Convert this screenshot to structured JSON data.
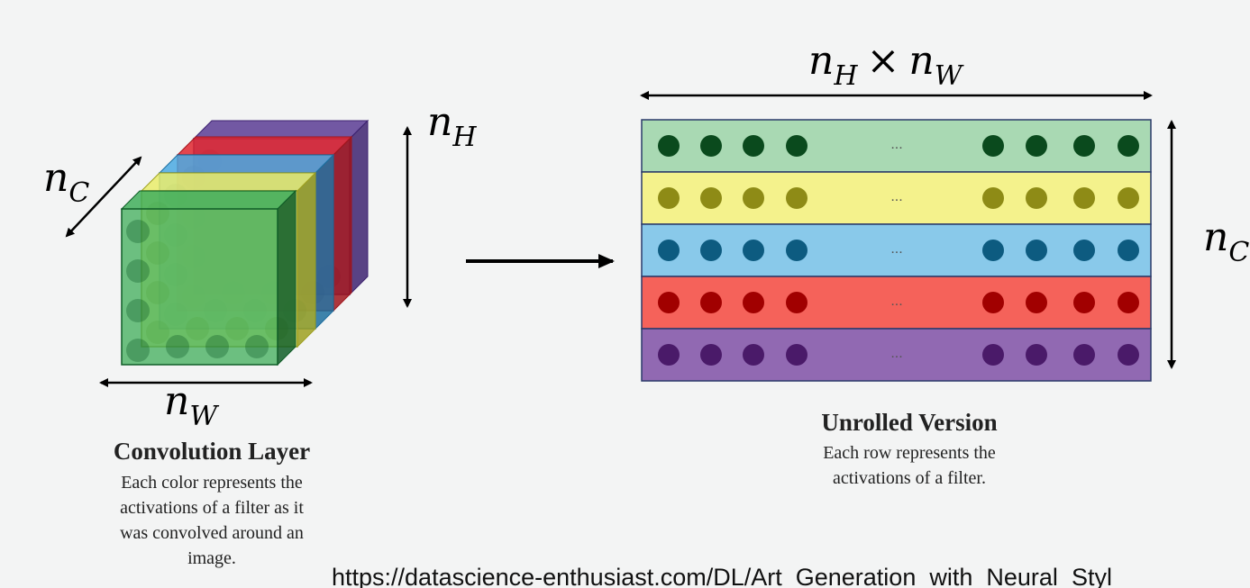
{
  "left": {
    "dim_c": {
      "main": "n",
      "sub": "C"
    },
    "dim_h": {
      "main": "n",
      "sub": "H"
    },
    "dim_w": {
      "main": "n",
      "sub": "W"
    },
    "title": "Convolution Layer",
    "description": [
      "Each color represents the",
      "activations of a filter as it",
      "was convolved around an",
      "image."
    ]
  },
  "right": {
    "dim_top": {
      "main": "n",
      "sub": "H",
      "op": "×",
      "main2": "n",
      "sub2": "W"
    },
    "dim_c": {
      "main": "n",
      "sub": "C"
    },
    "title": "Unrolled Version",
    "description": [
      "Each row represents the",
      "activations of a filter."
    ],
    "ellipsis": "...",
    "rows": [
      {
        "fill": "#a9d9b3",
        "dot": "#0a4a1d"
      },
      {
        "fill": "#f4f28c",
        "dot": "#8e8b16"
      },
      {
        "fill": "#89c9ea",
        "dot": "#0d5b80"
      },
      {
        "fill": "#f5625a",
        "dot": "#a10000"
      },
      {
        "fill": "#9169b2",
        "dot": "#4a1a69"
      }
    ]
  },
  "footer": {
    "url": "https://datascience-enthusiast.com/DL/Art_Generation_with_Neural_Styl"
  }
}
